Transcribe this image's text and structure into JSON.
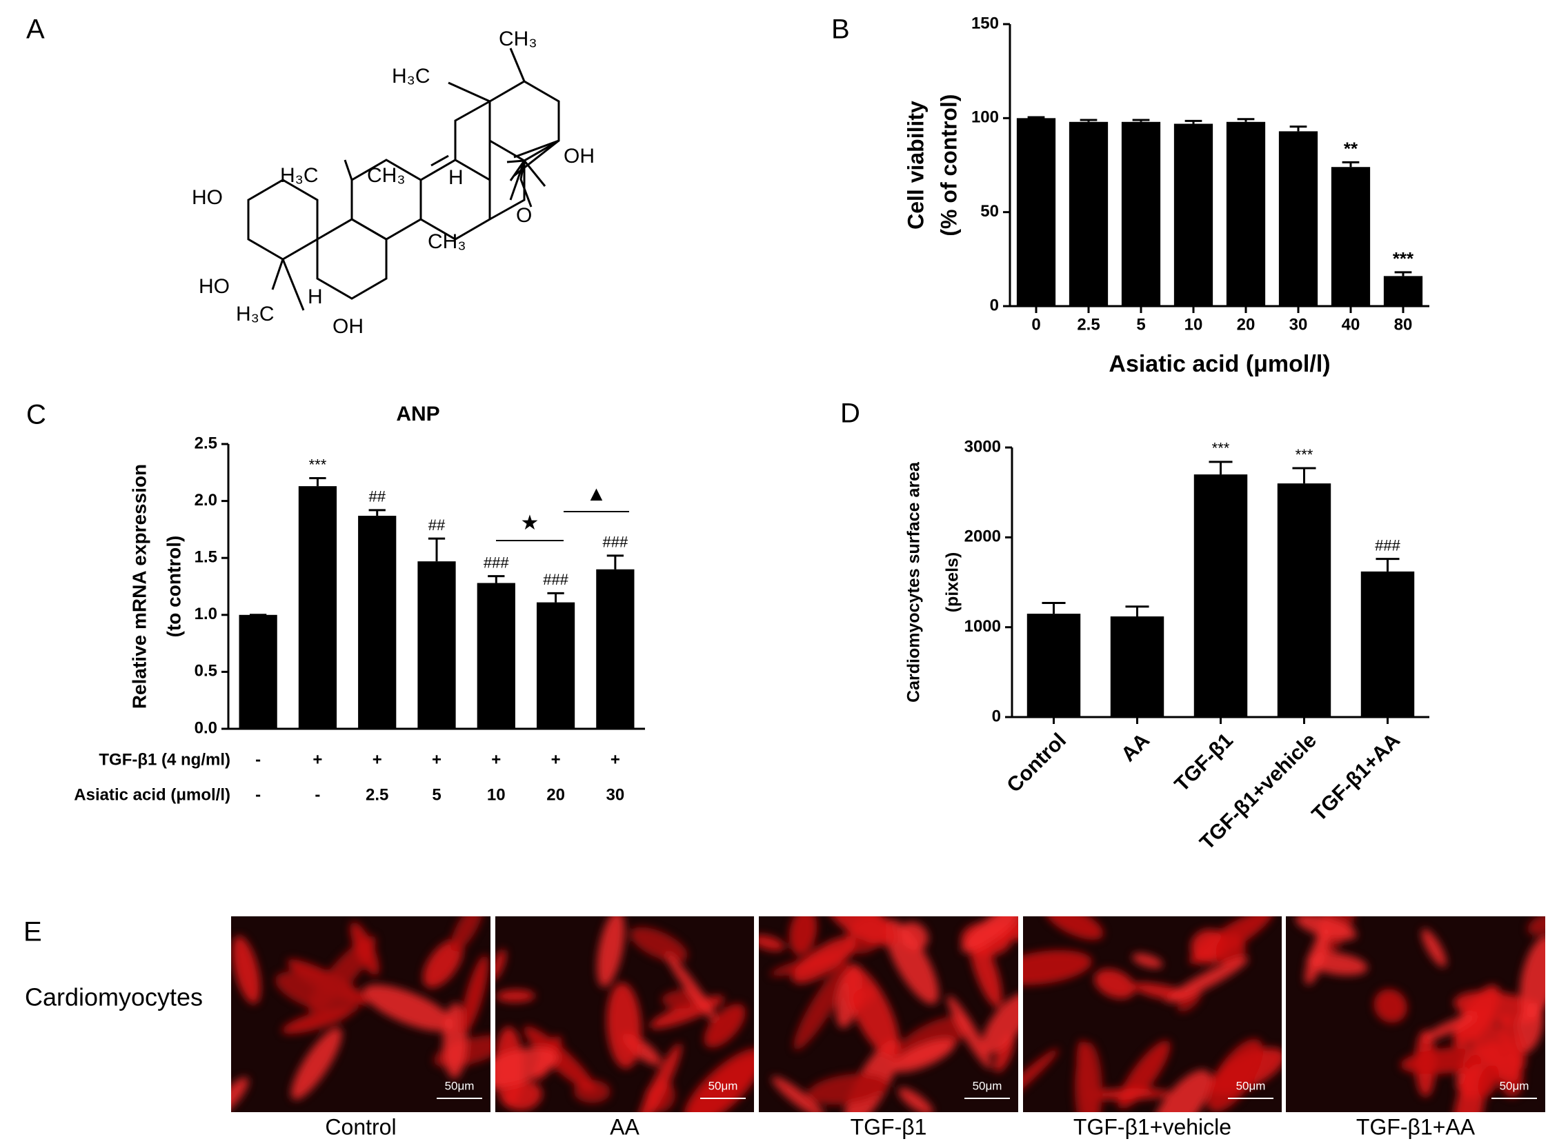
{
  "panel_labels": [
    "A",
    "B",
    "C",
    "D",
    "E"
  ],
  "structure": {
    "atoms": [
      "CH₃",
      "H₃C",
      "OH",
      "H₃C",
      "CH₃",
      "HO",
      "H",
      "CH₃",
      "O",
      "HO",
      "H",
      "H₃C",
      "OH"
    ]
  },
  "chart_data": [
    {
      "type": "bar",
      "categories": [
        "0",
        "2.5",
        "5",
        "10",
        "20",
        "30",
        "40",
        "80"
      ],
      "values": [
        100,
        98,
        98,
        97,
        98,
        93,
        74,
        16
      ],
      "errors": [
        0.5,
        1,
        1,
        1.5,
        1.5,
        2.5,
        2.5,
        2
      ],
      "annotations": [
        null,
        null,
        null,
        null,
        null,
        null,
        "**",
        "***"
      ],
      "color": "#000000",
      "ylim": [
        0,
        150
      ],
      "yticks": [
        0,
        50,
        100,
        150
      ],
      "ylabel": [
        "Cell viability",
        "(% of control)"
      ],
      "xlabel": "Asiatic acid (μmol/l)"
    },
    {
      "type": "bar",
      "title": "ANP",
      "values": [
        1.0,
        2.13,
        1.87,
        1.47,
        1.28,
        1.11,
        1.4
      ],
      "errors": [
        0,
        0.07,
        0.05,
        0.2,
        0.06,
        0.08,
        0.12
      ],
      "annotations": [
        null,
        "***",
        "##",
        "##",
        "###",
        "###",
        "###"
      ],
      "color": "#000000",
      "ylim": [
        0,
        2.5
      ],
      "yticks": [
        {
          "value": 0,
          "label": "0.0"
        },
        {
          "value": 0.5,
          "label": "0.5"
        },
        {
          "value": 1,
          "label": "1.0"
        },
        {
          "value": 1.5,
          "label": "1.5"
        },
        {
          "value": 2,
          "label": "2.0"
        },
        {
          "value": 2.5,
          "label": "2.5"
        }
      ],
      "ylabel": [
        "Relative mRNA expression",
        "(to control)"
      ],
      "rows": [
        {
          "label": "TGF-β1 (4 ng/ml)",
          "values": [
            "-",
            "+",
            "+",
            "+",
            "+",
            "+",
            "+"
          ]
        },
        {
          "label": "Asiatic acid (μmol/l)",
          "values": [
            "-",
            "-",
            "2.5",
            "5",
            "10",
            "20",
            "30"
          ]
        }
      ],
      "brackets": [
        "★",
        "▲"
      ]
    },
    {
      "type": "bar",
      "categories": [
        "Control",
        "AA",
        "TGF-β1",
        "TGF-β1+vehicle",
        "TGF-β1+AA"
      ],
      "values": [
        1150,
        1120,
        2700,
        2600,
        1620
      ],
      "errors": [
        120,
        110,
        140,
        170,
        140
      ],
      "annotations": [
        null,
        null,
        "***",
        "***",
        "###"
      ],
      "color": "#000000",
      "ylim": [
        0,
        3000
      ],
      "yticks": [
        0,
        1000,
        2000,
        3000
      ],
      "ylabel": [
        "Cardiomyocytes surface area",
        "(pixels)"
      ]
    }
  ],
  "images": {
    "row_label": "Cardiomyocytes",
    "captions": [
      "Control",
      "AA",
      "TGF-β1",
      "TGF-β1+vehicle",
      "TGF-β1+AA"
    ],
    "scale_bars": [
      "50μm",
      "50μm",
      "50μm",
      "50μm",
      "50μm"
    ]
  }
}
